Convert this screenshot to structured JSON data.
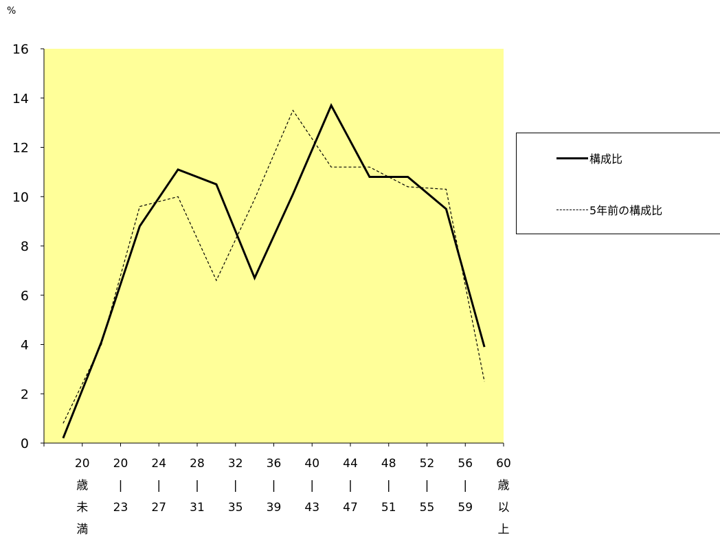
{
  "chart_data": {
    "type": "line",
    "unit_label": "%",
    "ylim": [
      0,
      16
    ],
    "yticks": [
      "0",
      "2",
      "4",
      "6",
      "8",
      "10",
      "12",
      "14",
      "16"
    ],
    "xtick_labels": [
      [
        "20",
        "歳",
        "未",
        "満"
      ],
      [
        "20",
        "|",
        "23"
      ],
      [
        "24",
        "|",
        "27"
      ],
      [
        "28",
        "|",
        "31"
      ],
      [
        "32",
        "|",
        "35"
      ],
      [
        "36",
        "|",
        "39"
      ],
      [
        "40",
        "|",
        "43"
      ],
      [
        "44",
        "|",
        "47"
      ],
      [
        "48",
        "|",
        "51"
      ],
      [
        "52",
        "|",
        "55"
      ],
      [
        "56",
        "|",
        "59"
      ],
      [
        "60",
        "歳",
        "以",
        "上"
      ]
    ],
    "series": [
      {
        "name": "構成比",
        "style": "solid",
        "values": [
          0.2,
          4.1,
          8.8,
          11.1,
          10.5,
          6.7,
          10.1,
          13.7,
          10.8,
          10.8,
          9.5,
          3.9
        ]
      },
      {
        "name": "5年前の構成比",
        "style": "dashed",
        "values": [
          0.8,
          4.0,
          9.6,
          10.0,
          6.6,
          9.9,
          13.5,
          11.2,
          11.2,
          10.4,
          10.3,
          2.5
        ]
      }
    ],
    "plot_background": "#FFFF99",
    "line_color": "#000000",
    "grid": false,
    "legend_position": "right"
  }
}
